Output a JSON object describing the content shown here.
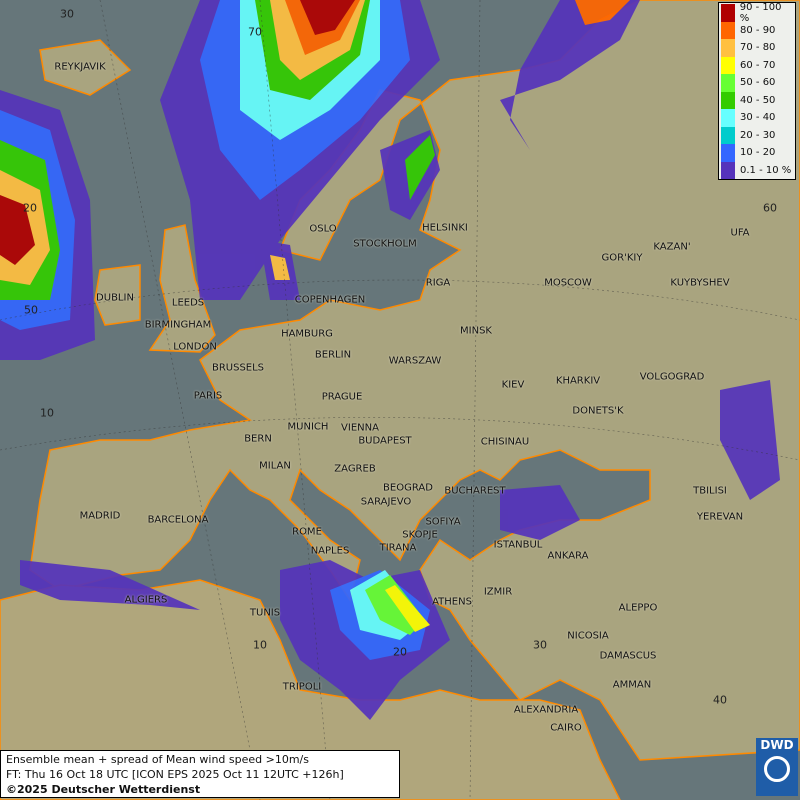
{
  "legend": {
    "items": [
      {
        "label": "90 - 100 %",
        "color": "#b00000"
      },
      {
        "label": "80 - 90",
        "color": "#ff6600"
      },
      {
        "label": "70 - 80",
        "color": "#ffc040"
      },
      {
        "label": "60 - 70",
        "color": "#ffff00"
      },
      {
        "label": "50 - 60",
        "color": "#66ff33"
      },
      {
        "label": "40 - 50",
        "color": "#33cc00"
      },
      {
        "label": "30 - 40",
        "color": "#66ffff"
      },
      {
        "label": "20 - 30",
        "color": "#00cccc"
      },
      {
        "label": "10 - 20",
        "color": "#3366ff"
      },
      {
        "label": "0.1 - 10 %",
        "color": "#5533bb"
      }
    ]
  },
  "info": {
    "line1": "Ensemble mean + spread of Mean wind speed >10m/s",
    "line2": "FT: Thu 16 Oct 18 UTC [ICON EPS 2025 Oct 11 12UTC +126h]",
    "line3": "©2025 Deutscher Wetterdienst"
  },
  "logo": {
    "text": "DWD"
  },
  "grid_labels": [
    "30",
    "70",
    "20",
    "50",
    "10",
    "60",
    "10",
    "20",
    "30",
    "40"
  ],
  "cities": [
    "REYKJAVIK",
    "OSLO",
    "STOCKHOLM",
    "HELSINKI",
    "GOR'KIY",
    "KAZAN'",
    "UFA",
    "MOSCOW",
    "KUYBYSHEV",
    "RIGA",
    "COPENHAGEN",
    "DUBLIN",
    "LEEDS",
    "BIRMINGHAM",
    "LONDON",
    "HAMBURG",
    "BERLIN",
    "MINSK",
    "WARSZAW",
    "BRUSSELS",
    "KIEV",
    "KHARKIV",
    "VOLGOGRAD",
    "PARIS",
    "PRAGUE",
    "DONETS'K",
    "MUNICH",
    "VIENNA",
    "BERN",
    "BUDAPEST",
    "CHISINAU",
    "MILAN",
    "ZAGREB",
    "BEOGRAD",
    "BUCHAREST",
    "TBILISI",
    "MADRID",
    "BARCELONA",
    "SARAJEVO",
    "SOFIYA",
    "YEREVAN",
    "ROME",
    "SKOPJE",
    "ISTANBUL",
    "ANKARA",
    "NAPLES",
    "TIRANA",
    "ALGIERS",
    "IZMIR",
    "ATHENS",
    "ALEPPO",
    "TUNIS",
    "NICOSIA",
    "DAMASCUS",
    "TRIPOLI",
    "AMMAN",
    "ALEXANDRIA",
    "CAIRO"
  ]
}
